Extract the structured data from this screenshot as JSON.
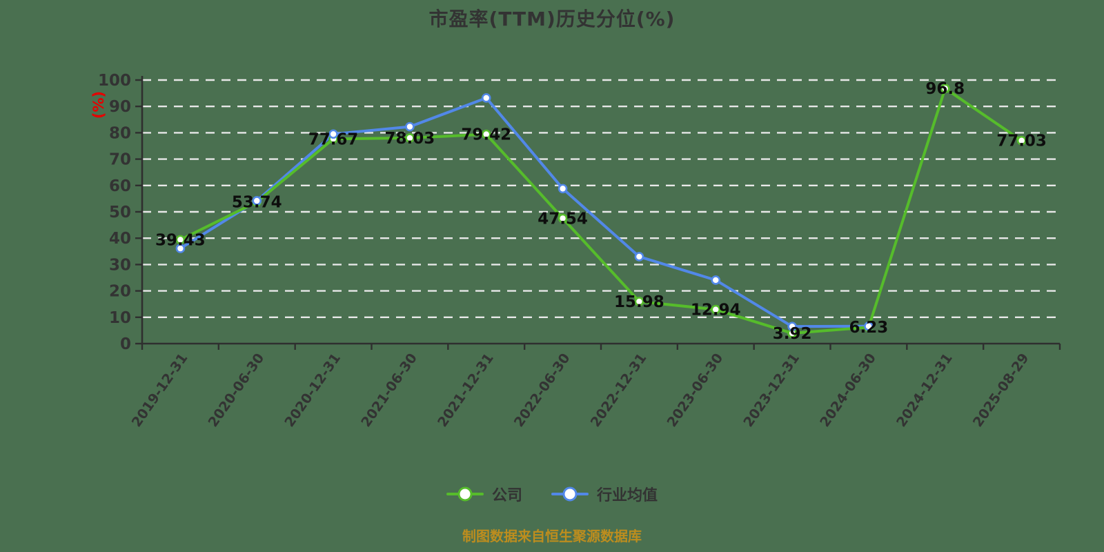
{
  "title": "市盈率(TTM)历史分位(%)",
  "caption": "制图数据来自恒生聚源数据库",
  "colors": {
    "background": "#4a7050",
    "title_color": "#333333",
    "company_green": "#56bc2b",
    "industry_blue": "#5288e8",
    "gridline": "#e8e8e8",
    "axis": "#2f2f2f",
    "tick_text": "#333333",
    "data_label": "#0d0d0d",
    "y_axis_name_color": "#e60000",
    "caption_color": "#bd8d1e",
    "legend_text": "#333333",
    "marker_fill": "#ffffff"
  },
  "legend": {
    "items": [
      {
        "label": "公司"
      },
      {
        "label": "行业均值"
      }
    ]
  },
  "chart_data": {
    "type": "line",
    "title": "市盈率(TTM)历史分位(%)",
    "y_axis_name": "(%)",
    "ylim": [
      0,
      100
    ],
    "y_ticks": [
      0,
      10,
      20,
      30,
      40,
      50,
      60,
      70,
      80,
      90,
      100
    ],
    "grid": true,
    "grid_style": "white-dashed-horizontal",
    "legend_position": "bottom",
    "x_label_rotation": -55,
    "categories": [
      "2019-12-31",
      "2020-06-30",
      "2020-12-31",
      "2021-06-30",
      "2021-12-31",
      "2022-06-30",
      "2022-12-31",
      "2023-06-30",
      "2023-12-31",
      "2024-06-30",
      "2024-12-31",
      "2025-08-29"
    ],
    "series": [
      {
        "id": "company",
        "name": "公司",
        "color": "#56bc2b",
        "values": [
          39.43,
          53.74,
          77.67,
          78.03,
          79.42,
          47.54,
          15.98,
          12.94,
          3.92,
          6.23,
          96.8,
          77.03
        ],
        "labels": [
          "39.43",
          "53.74",
          "77.67",
          "78.03",
          "79.42",
          "47.54",
          "15.98",
          "12.94",
          "3.92",
          "6.23",
          "96.8",
          "77.03"
        ]
      },
      {
        "id": "industry",
        "name": "行业均值",
        "color": "#5288e8",
        "values": [
          36.1,
          54.2,
          79.5,
          82.3,
          93.2,
          58.8,
          33.0,
          24.1,
          6.5,
          6.6,
          null,
          null
        ],
        "labels": null
      }
    ]
  }
}
